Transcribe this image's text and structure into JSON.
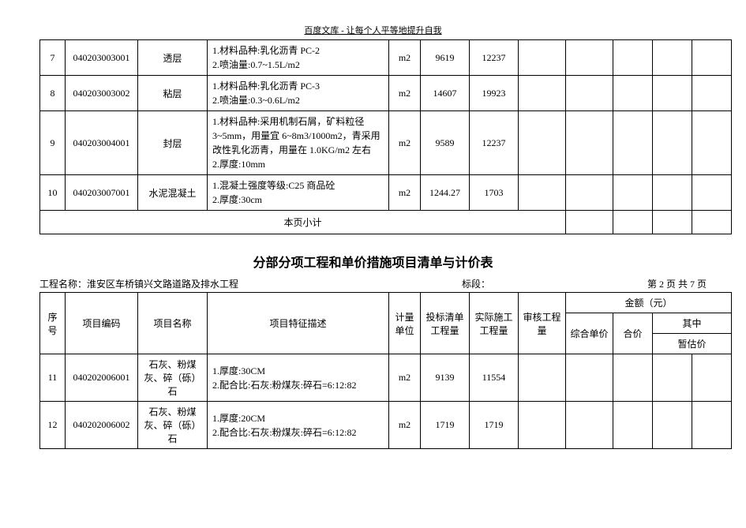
{
  "page_header": "百度文库 - 让每个人平等地提升自我",
  "table1": {
    "rows": [
      {
        "seq": "7",
        "code": "040203003001",
        "name": "透层",
        "desc": "1.材料品种:乳化沥青 PC-2\n2.喷油量:0.7~1.5L/m2",
        "unit": "m2",
        "qb": "9619",
        "qa": "12237"
      },
      {
        "seq": "8",
        "code": "040203003002",
        "name": "粘层",
        "desc": "1.材料品种:乳化沥青 PC-3\n2.喷油量:0.3~0.6L/m2",
        "unit": "m2",
        "qb": "14607",
        "qa": "19923"
      },
      {
        "seq": "9",
        "code": "040203004001",
        "name": "封层",
        "desc": "1.材料品种:采用机制石屑，矿料粒径 3~5mm，用量宜 6~8m3/1000m2，青采用改性乳化沥青，用量在 1.0KG/m2 左右\n2.厚度:10mm",
        "unit": "m2",
        "qb": "9589",
        "qa": "12237"
      },
      {
        "seq": "10",
        "code": "040203007001",
        "name": "水泥混凝土",
        "desc": "1.混凝土强度等级:C25 商品砼\n2.厚度:30cm",
        "unit": "m2",
        "qb": "1244.27",
        "qa": "1703"
      }
    ],
    "subtotal_label": "本页小计"
  },
  "section2": {
    "title": "分部分项工程和单价措施项目清单与计价表",
    "project_name_label": "工程名称：",
    "project_name": "淮安区车桥镇兴文路道路及排水工程",
    "section_label": "标段：",
    "page_label": "第 2 页 共 7 页",
    "headers": {
      "seq": "序号",
      "code": "项目编码",
      "name": "项目名称",
      "desc": "项目特征描述",
      "unit": "计量\n单位",
      "qb": "投标清单\n工程量",
      "qa": "实际施工\n工程量",
      "audit": "审核工程量",
      "amount": "金额（元）",
      "unit_price": "综合单价",
      "total": "合价",
      "sub": "其中",
      "provisional": "暂估价"
    },
    "rows": [
      {
        "seq": "11",
        "code": "040202006001",
        "name": "石灰、粉煤灰、碎（砾）石",
        "desc": "1.厚度:30CM\n2.配合比:石灰:粉煤灰:碎石=6:12:82",
        "unit": "m2",
        "qb": "9139",
        "qa": "11554"
      },
      {
        "seq": "12",
        "code": "040202006002",
        "name": "石灰、粉煤灰、碎（砾）石",
        "desc": "1.厚度:20CM\n2.配合比:石灰:粉煤灰:碎石=6:12:82",
        "unit": "m2",
        "qb": "1719",
        "qa": "1719"
      }
    ]
  }
}
